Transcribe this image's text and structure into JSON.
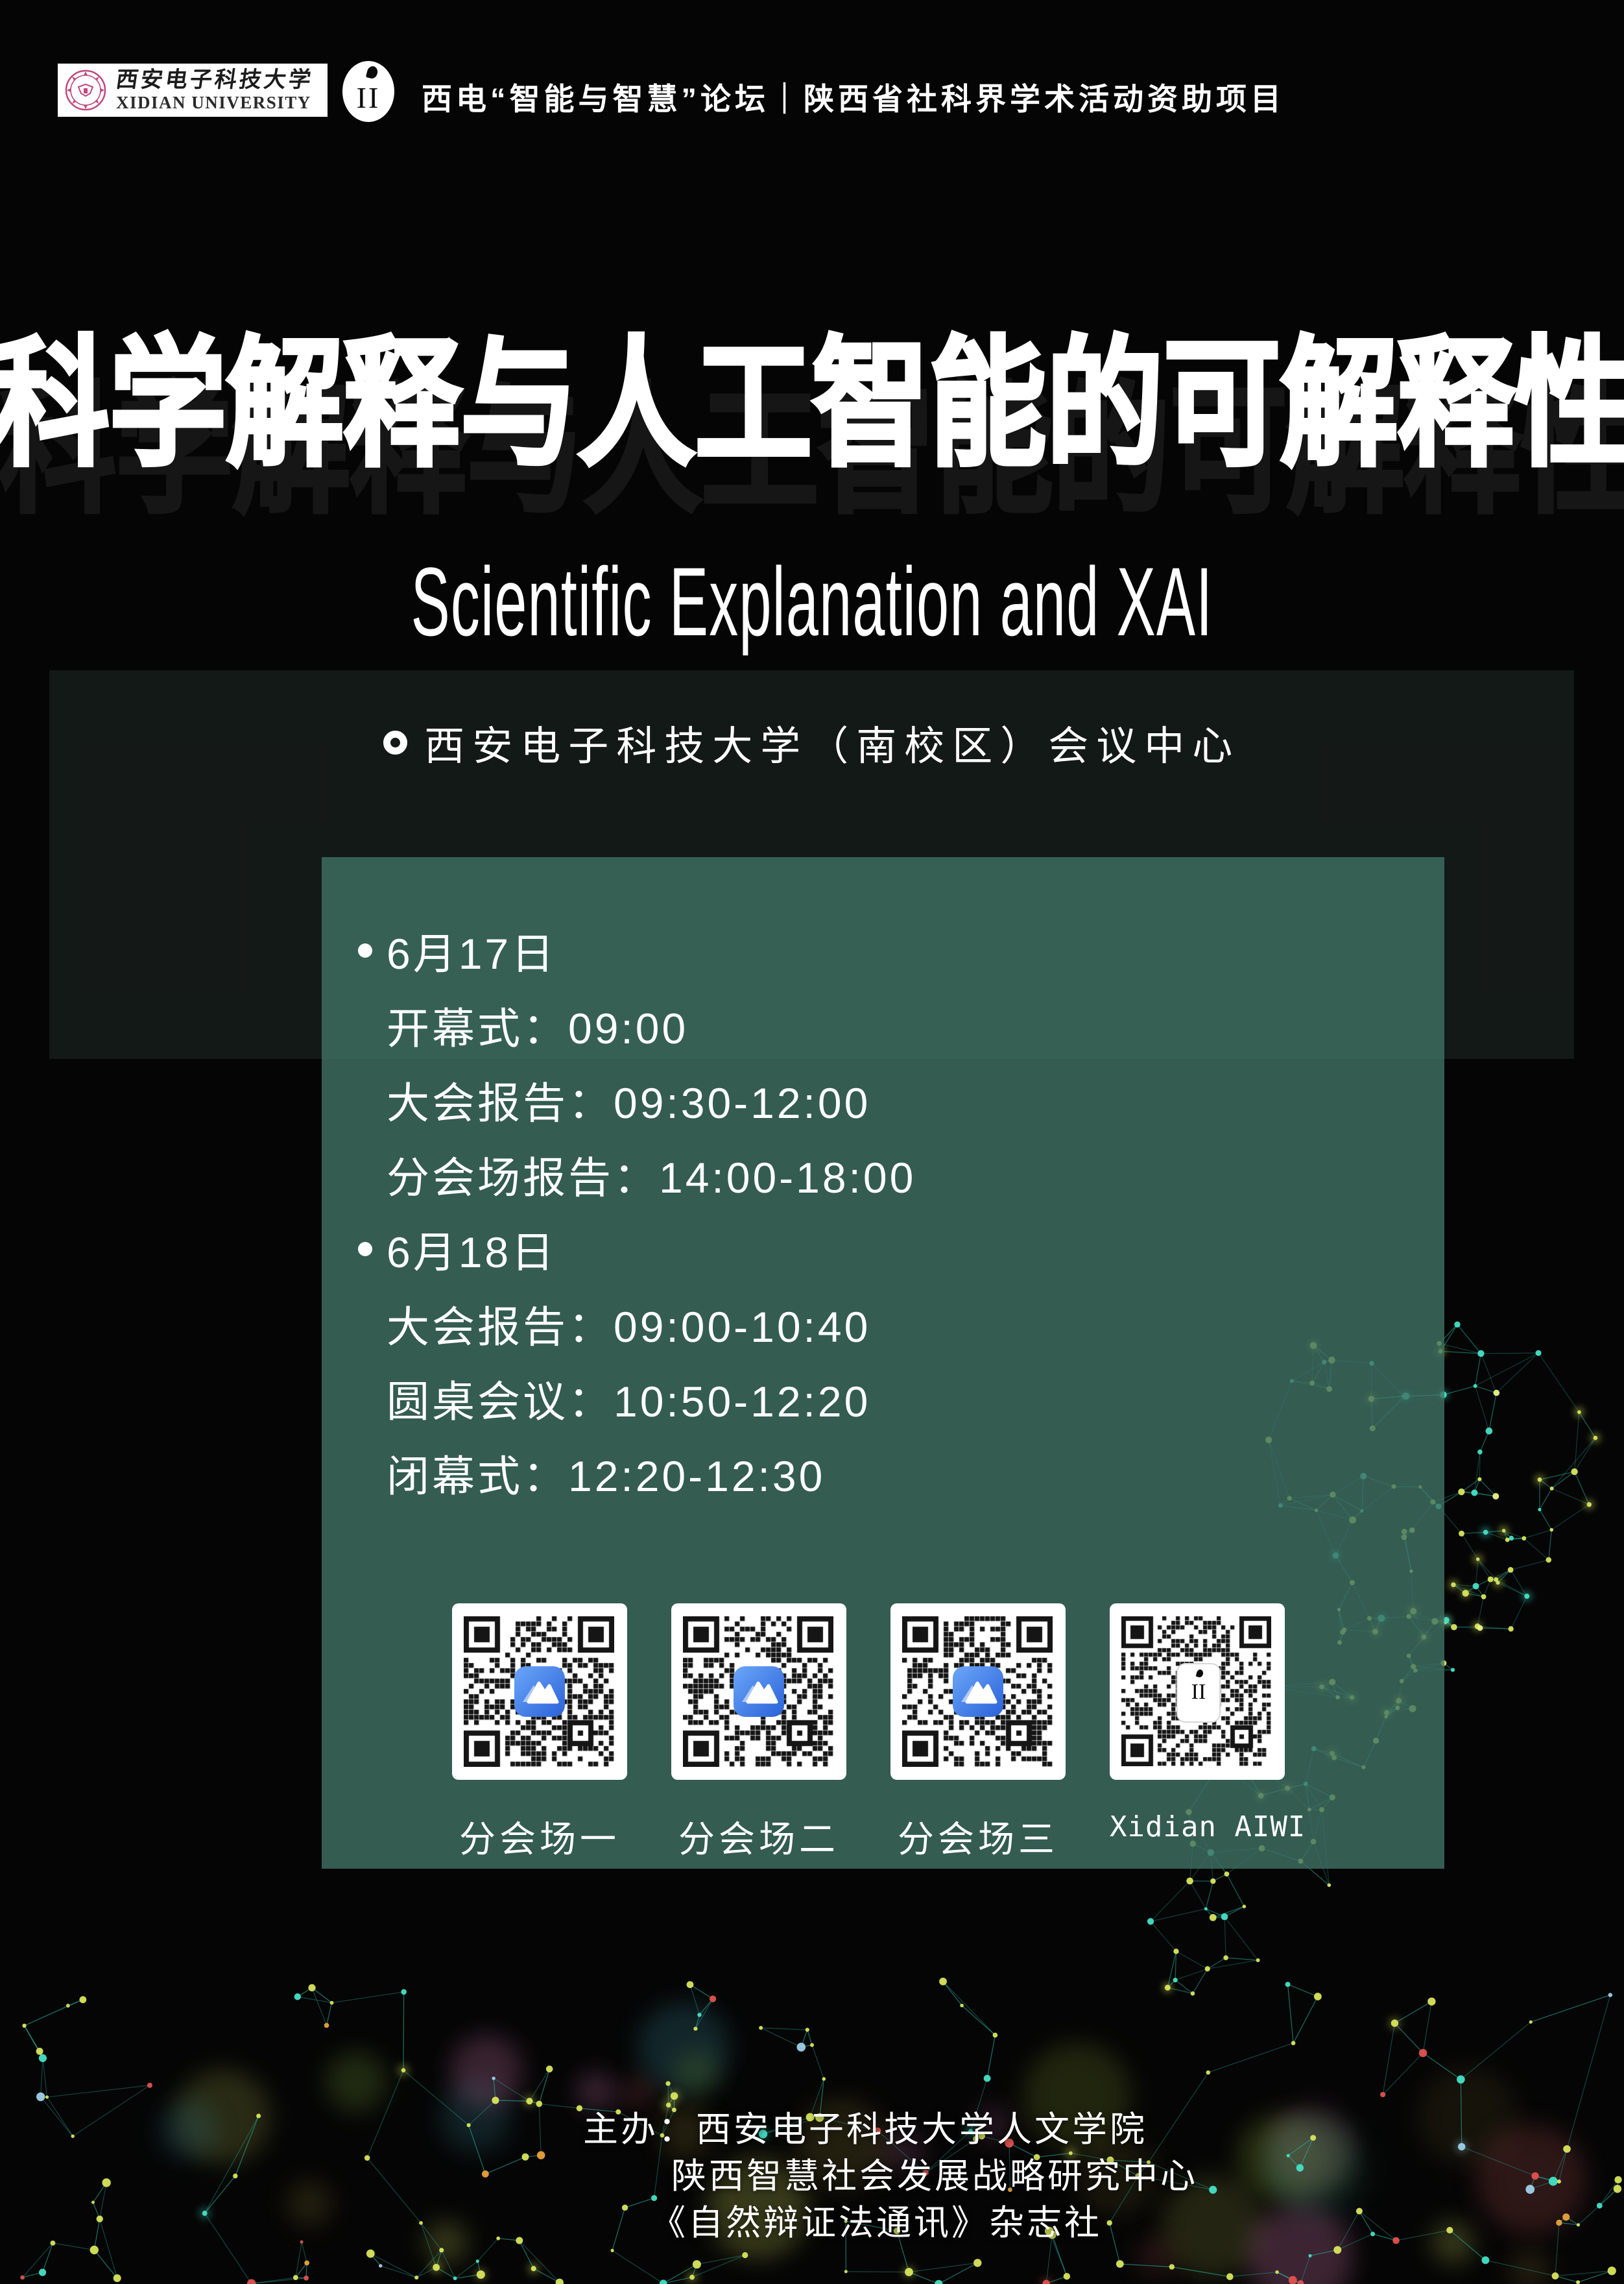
{
  "header": {
    "university_cn": "西安电子科技大学",
    "university_en": "XIDIAN UNIVERSITY",
    "aiwi_mark": "II",
    "forum_line": "西电“智能与智慧”论坛｜陕西省社科界学术活动资助项目"
  },
  "title": {
    "main": "科学解释与人工智能的可解释性",
    "subtitle": "Scientific Explanation and XAI"
  },
  "venue": {
    "label": "西安电子科技大学（南校区）会议中心"
  },
  "schedule": {
    "days": [
      {
        "date": "6月17日",
        "items": [
          "开幕式：09:00",
          "大会报告：09:30-12:00",
          "分会场报告：14:00-18:00"
        ]
      },
      {
        "date": "6月18日",
        "items": [
          "大会报告：09:00-10:40",
          "圆桌会议：10:50-12:20",
          "闭幕式：12:20-12:30"
        ]
      }
    ]
  },
  "qr_codes": [
    {
      "label": "分会场一",
      "logo": "meeting-icon"
    },
    {
      "label": "分会场二",
      "logo": "meeting-icon"
    },
    {
      "label": "分会场三",
      "logo": "meeting-icon"
    },
    {
      "label": "Xidian AIWI",
      "logo": "aiwi-icon"
    }
  ],
  "organizers": {
    "prefix": "主办：",
    "lines": [
      "西安电子科技大学人文学院",
      "陕西智慧社会发展战略研究中心",
      "《自然辩证法通讯》杂志社"
    ]
  },
  "colors": {
    "panel_inner": "rgba(64,114,100,0.80)",
    "panel_outer": "rgba(150,205,185,0.10)",
    "mesh_teal": "#27b0a0",
    "dot_yellow": "#d9e55c",
    "dot_teal": "#45e0c6",
    "dot_red": "#e0524e",
    "dot_orange": "#e8a33c",
    "qr_module": "#151515",
    "seal_pink": "#c2487e"
  }
}
